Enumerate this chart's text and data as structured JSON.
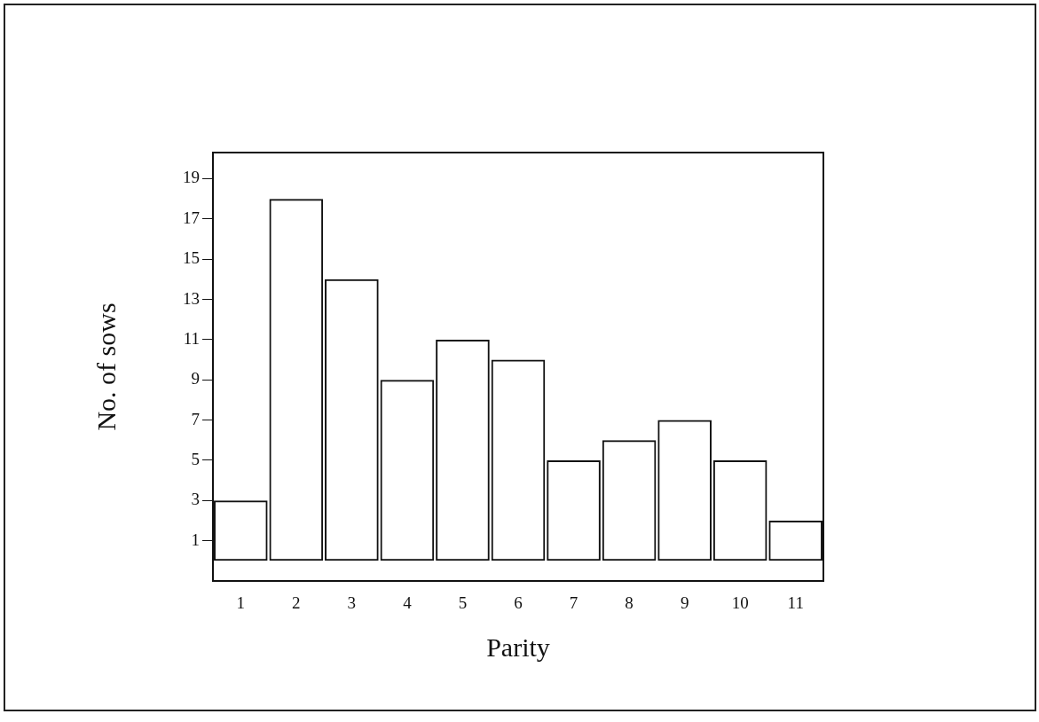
{
  "chart_data": {
    "type": "bar",
    "xlabel": "Parity",
    "ylabel": "No. of sows",
    "categories": [
      "1",
      "2",
      "3",
      "4",
      "5",
      "6",
      "7",
      "8",
      "9",
      "10",
      "11"
    ],
    "values": [
      3,
      18,
      14,
      9,
      11,
      10,
      5,
      6,
      7,
      5,
      2
    ],
    "color": "#111111",
    "ylim": [
      -1,
      20.3
    ],
    "yticks": [
      1,
      3,
      5,
      7,
      9,
      11,
      13,
      15,
      17,
      19
    ],
    "grid": false
  }
}
